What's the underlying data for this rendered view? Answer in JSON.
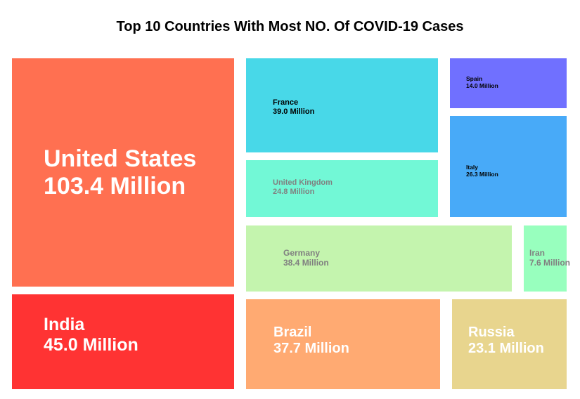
{
  "chart_data": {
    "type": "treemap",
    "title": "Top 10 Countries With Most NO. Of COVID-19 Cases",
    "unit": "Million",
    "items": [
      {
        "name": "United States",
        "value": 103.4,
        "value_label": "103.4 Million",
        "color": "#FF7051",
        "text_color": "#FFFFFF"
      },
      {
        "name": "India",
        "value": 45.0,
        "value_label": "45.0 Million",
        "color": "#FF3333",
        "text_color": "#FFFFFF"
      },
      {
        "name": "France",
        "value": 39.0,
        "value_label": "39.0 Million",
        "color": "#48D8E8",
        "text_color": "#000000"
      },
      {
        "name": "Spain",
        "value": 14.0,
        "value_label": "14.0 Million",
        "color": "#7070FF",
        "text_color": "#000000"
      },
      {
        "name": "Italy",
        "value": 26.3,
        "value_label": "26.3 Million",
        "color": "#48AAF8",
        "text_color": "#000000"
      },
      {
        "name": "United Kingdom",
        "value": 24.8,
        "value_label": "24.8 Million",
        "color": "#72F8D6",
        "text_color": "#808080"
      },
      {
        "name": "Germany",
        "value": 38.4,
        "value_label": "38.4 Million",
        "color": "#C4F4AE",
        "text_color": "#808080"
      },
      {
        "name": "Iran",
        "value": 7.6,
        "value_label": "7.6 Million",
        "color": "#98FFBE",
        "text_color": "#808080"
      },
      {
        "name": "Brazil",
        "value": 37.7,
        "value_label": "37.7 Million",
        "color": "#FFAA72",
        "text_color": "#FFFFFF"
      },
      {
        "name": "Russia",
        "value": 23.1,
        "value_label": "23.1 Million",
        "color": "#E8D58E",
        "text_color": "#FFFFFF"
      }
    ]
  }
}
